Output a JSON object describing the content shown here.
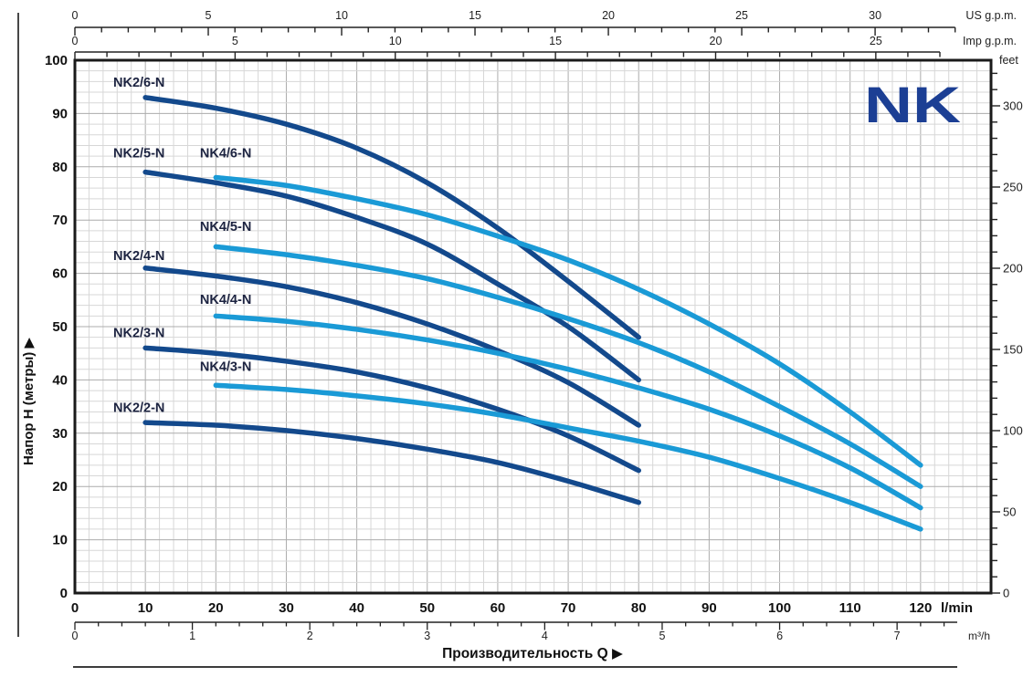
{
  "logo": {
    "text": "NK",
    "color": "#1c3f94"
  },
  "chart_data": {
    "type": "line",
    "title": "NK pump performance curves (head vs flow)",
    "xlabel": "Производительность Q ▶",
    "ylabel": "Напор H (метры) ▶",
    "xlim": [
      0,
      130
    ],
    "ylim": [
      0,
      100
    ],
    "grid": "on",
    "colors": {
      "dark": "#13498C",
      "light": "#1A9AD6",
      "label": "#1c2340"
    },
    "axes": {
      "bottom_lmin": {
        "unit": "l/min",
        "ticks": [
          0,
          10,
          20,
          30,
          40,
          50,
          60,
          70,
          80,
          90,
          100,
          110,
          120
        ]
      },
      "bottom_m3h": {
        "unit": "m³/h",
        "ticks": [
          0,
          1,
          2,
          3,
          4,
          5,
          6,
          7
        ],
        "lmin_per_unit": 16.667,
        "minor_step": 0.2,
        "minor_max": 7.4
      },
      "top_us_gpm": {
        "unit": "US g.p.m.",
        "ticks": [
          0,
          5,
          10,
          15,
          20,
          25,
          30
        ],
        "lmin_per_unit": 3.785,
        "minor_step": 1,
        "minor_max": 33
      },
      "top_imp_gpm": {
        "unit": "Imp g.p.m.",
        "ticks": [
          0,
          5,
          10,
          15,
          20,
          25
        ],
        "lmin_per_unit": 4.546,
        "minor_step": 1,
        "minor_max": 27
      },
      "left_m": {
        "ticks": [
          0,
          10,
          20,
          30,
          40,
          50,
          60,
          70,
          80,
          90,
          100
        ]
      },
      "right_feet": {
        "unit": "feet",
        "ticks": [
          0,
          50,
          100,
          150,
          200,
          250,
          300
        ],
        "minor_step": 10,
        "minor_max": 320,
        "m_per_unit": 0.3048
      }
    },
    "series": [
      {
        "name": "NK2/6-N",
        "color": "dark",
        "label_pos": [
          9.1,
          95.0
        ],
        "points": [
          [
            10,
            93
          ],
          [
            20,
            91
          ],
          [
            30,
            88
          ],
          [
            40,
            83.5
          ],
          [
            50,
            77
          ],
          [
            60,
            68.5
          ],
          [
            70,
            58.5
          ],
          [
            80,
            48
          ]
        ]
      },
      {
        "name": "NK2/5-N",
        "color": "dark",
        "label_pos": [
          9.1,
          81.8
        ],
        "points": [
          [
            10,
            79
          ],
          [
            20,
            77
          ],
          [
            30,
            74.5
          ],
          [
            40,
            70.5
          ],
          [
            50,
            65.5
          ],
          [
            60,
            58
          ],
          [
            70,
            50
          ],
          [
            80,
            40
          ]
        ]
      },
      {
        "name": "NK2/4-N",
        "color": "dark",
        "label_pos": [
          9.1,
          62.5
        ],
        "points": [
          [
            10,
            61
          ],
          [
            20,
            59.5
          ],
          [
            30,
            57.5
          ],
          [
            40,
            54.5
          ],
          [
            50,
            50.5
          ],
          [
            60,
            45.5
          ],
          [
            70,
            39.5
          ],
          [
            80,
            31.5
          ]
        ]
      },
      {
        "name": "NK2/3-N",
        "color": "dark",
        "label_pos": [
          9.1,
          48.0
        ],
        "points": [
          [
            10,
            46
          ],
          [
            20,
            45
          ],
          [
            30,
            43.5
          ],
          [
            40,
            41.5
          ],
          [
            50,
            38.5
          ],
          [
            60,
            34.5
          ],
          [
            70,
            29.5
          ],
          [
            80,
            23
          ]
        ]
      },
      {
        "name": "NK2/2-N",
        "color": "dark",
        "label_pos": [
          9.1,
          34.0
        ],
        "points": [
          [
            10,
            32
          ],
          [
            20,
            31.5
          ],
          [
            30,
            30.5
          ],
          [
            40,
            29
          ],
          [
            50,
            27
          ],
          [
            60,
            24.5
          ],
          [
            70,
            21
          ],
          [
            80,
            17
          ]
        ]
      },
      {
        "name": "NK4/6-N",
        "color": "light",
        "label_pos": [
          21.4,
          81.8
        ],
        "points": [
          [
            20,
            78
          ],
          [
            30,
            76.5
          ],
          [
            40,
            74
          ],
          [
            50,
            71
          ],
          [
            60,
            67
          ],
          [
            70,
            62.5
          ],
          [
            80,
            57
          ],
          [
            90,
            50.5
          ],
          [
            100,
            43
          ],
          [
            110,
            34
          ],
          [
            120,
            24
          ]
        ]
      },
      {
        "name": "NK4/5-N",
        "color": "light",
        "label_pos": [
          21.4,
          68.0
        ],
        "points": [
          [
            20,
            65
          ],
          [
            30,
            63.5
          ],
          [
            40,
            61.5
          ],
          [
            50,
            59
          ],
          [
            60,
            55.5
          ],
          [
            70,
            51.5
          ],
          [
            80,
            47
          ],
          [
            90,
            41.5
          ],
          [
            100,
            35
          ],
          [
            110,
            28
          ],
          [
            120,
            20
          ]
        ]
      },
      {
        "name": "NK4/4-N",
        "color": "light",
        "label_pos": [
          21.4,
          54.3
        ],
        "points": [
          [
            20,
            52
          ],
          [
            30,
            51
          ],
          [
            40,
            49.5
          ],
          [
            50,
            47.5
          ],
          [
            60,
            45
          ],
          [
            70,
            42
          ],
          [
            80,
            38.5
          ],
          [
            90,
            34.5
          ],
          [
            100,
            29.5
          ],
          [
            110,
            23.5
          ],
          [
            120,
            16
          ]
        ]
      },
      {
        "name": "NK4/3-N",
        "color": "light",
        "label_pos": [
          21.4,
          41.7
        ],
        "points": [
          [
            20,
            39
          ],
          [
            30,
            38.2
          ],
          [
            40,
            37
          ],
          [
            50,
            35.5
          ],
          [
            60,
            33.5
          ],
          [
            70,
            31
          ],
          [
            80,
            28.5
          ],
          [
            90,
            25.5
          ],
          [
            100,
            21.5
          ],
          [
            110,
            17
          ],
          [
            120,
            12
          ]
        ]
      }
    ]
  }
}
